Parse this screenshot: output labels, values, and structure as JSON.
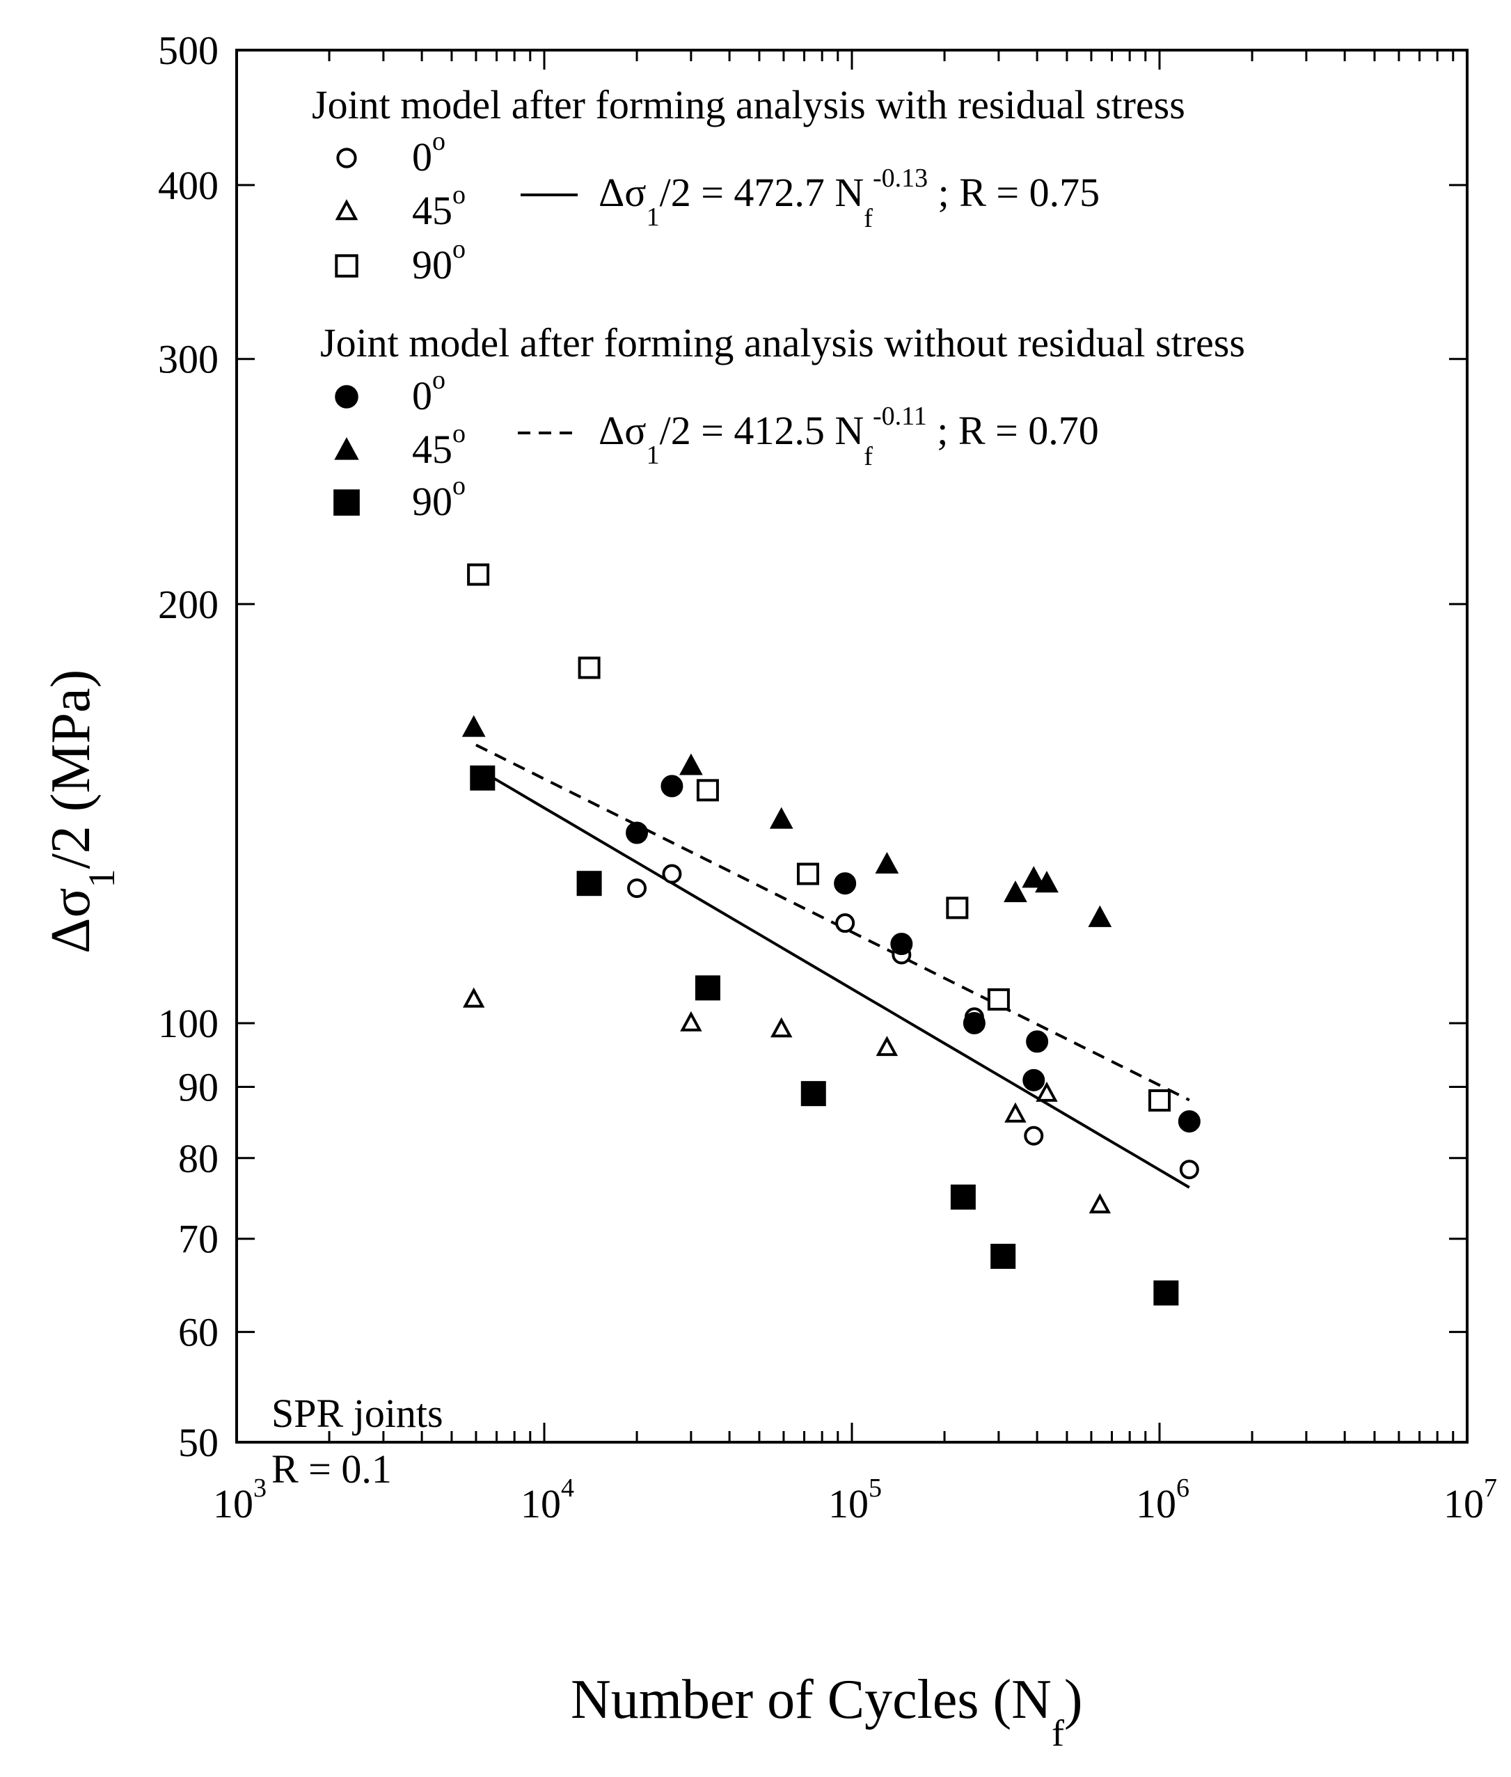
{
  "chart_data": {
    "type": "scatter",
    "xscale": "log",
    "yscale": "log",
    "xlim": [
      1000,
      10000000
    ],
    "ylim": [
      50,
      500
    ],
    "xlabel": "Number of Cycles (N",
    "xlabel_sub": "f",
    "xlabel_close": ")",
    "ylabel_prefix": "Δσ",
    "ylabel_sub": "1",
    "ylabel_suffix": "/2 (MPa)",
    "xticks": [
      {
        "value": 1000,
        "base": "10",
        "exp": "3"
      },
      {
        "value": 10000,
        "base": "10",
        "exp": "4"
      },
      {
        "value": 100000,
        "base": "10",
        "exp": "5"
      },
      {
        "value": 1000000,
        "base": "10",
        "exp": "6"
      },
      {
        "value": 10000000,
        "base": "10",
        "exp": "7"
      }
    ],
    "yticks": [
      {
        "value": 50,
        "label": "50"
      },
      {
        "value": 60,
        "label": "60"
      },
      {
        "value": 70,
        "label": "70"
      },
      {
        "value": 80,
        "label": "80"
      },
      {
        "value": 90,
        "label": "90"
      },
      {
        "value": 100,
        "label": "100"
      },
      {
        "value": 200,
        "label": "200"
      },
      {
        "value": 300,
        "label": "300"
      },
      {
        "value": 400,
        "label": "400"
      },
      {
        "value": 500,
        "label": "500"
      }
    ],
    "groups": [
      {
        "title": "Joint model after forming analysis with residual stress",
        "entries": [
          {
            "marker": "circle-open",
            "label": "0",
            "sup": "o"
          },
          {
            "marker": "triangle-open",
            "label": "45",
            "sup": "o"
          },
          {
            "marker": "square-open",
            "label": "90",
            "sup": "o"
          }
        ],
        "fit": {
          "style": "solid",
          "pre": "Δσ",
          "sub1": "1",
          "mid": "/2 = 472.7 N",
          "sub2": "f",
          "exp": "-0.13",
          "post": " ; R = 0.75"
        }
      },
      {
        "title": "Joint model after forming analysis without residual stress",
        "entries": [
          {
            "marker": "circle-filled",
            "label": "0",
            "sup": "o"
          },
          {
            "marker": "triangle-filled",
            "label": "45",
            "sup": "o"
          },
          {
            "marker": "square-filled",
            "label": "90",
            "sup": "o"
          }
        ],
        "fit": {
          "style": "dashed",
          "pre": "Δσ",
          "sub1": "1",
          "mid": "/2 = 412.5 N",
          "sub2": "f",
          "exp": "-0.11",
          "post": " ; R = 0.70"
        }
      }
    ],
    "series": [
      {
        "name": "with residual stress 0°",
        "marker": "circle-open",
        "points": [
          [
            20000,
            125
          ],
          [
            26000,
            128
          ],
          [
            95000,
            118
          ],
          [
            145000,
            112
          ],
          [
            250000,
            101
          ],
          [
            390000,
            83
          ],
          [
            1250000,
            78.5
          ]
        ]
      },
      {
        "name": "with residual stress 45°",
        "marker": "triangle-open",
        "points": [
          [
            5900,
            104
          ],
          [
            30000,
            100
          ],
          [
            59000,
            99
          ],
          [
            130000,
            96
          ],
          [
            340000,
            86
          ],
          [
            430000,
            89
          ],
          [
            640000,
            74
          ]
        ]
      },
      {
        "name": "with residual stress 90°",
        "marker": "square-open",
        "points": [
          [
            6100,
            210
          ],
          [
            14000,
            180
          ],
          [
            34000,
            147
          ],
          [
            72000,
            128
          ],
          [
            220000,
            121
          ],
          [
            300000,
            104
          ],
          [
            1000000,
            88
          ]
        ]
      },
      {
        "name": "without residual stress 0°",
        "marker": "circle-filled",
        "points": [
          [
            20000,
            137
          ],
          [
            26000,
            148
          ],
          [
            95000,
            126
          ],
          [
            145000,
            114
          ],
          [
            250000,
            100
          ],
          [
            390000,
            91
          ],
          [
            400000,
            97
          ],
          [
            1250000,
            85
          ]
        ]
      },
      {
        "name": "without residual stress 45°",
        "marker": "triangle-filled",
        "points": [
          [
            5900,
            163
          ],
          [
            30000,
            153
          ],
          [
            59000,
            140
          ],
          [
            130000,
            130
          ],
          [
            340000,
            124
          ],
          [
            390000,
            127
          ],
          [
            430000,
            126
          ],
          [
            640000,
            119
          ]
        ]
      },
      {
        "name": "without residual stress 90°",
        "marker": "square-filled",
        "points": [
          [
            6300,
            150
          ],
          [
            14000,
            126
          ],
          [
            34000,
            106
          ],
          [
            75000,
            89
          ],
          [
            230000,
            75
          ],
          [
            310000,
            68
          ],
          [
            1050000,
            64
          ]
        ]
      }
    ],
    "fits": [
      {
        "name": "with residual stress fit",
        "style": "solid",
        "a": 472.7,
        "b": -0.13,
        "xrange": [
          6000,
          1250000
        ]
      },
      {
        "name": "without residual stress fit",
        "style": "dashed",
        "a": 412.5,
        "b": -0.11,
        "xrange": [
          6000,
          1250000
        ]
      }
    ],
    "annotation": [
      "SPR joints",
      "R = 0.1"
    ]
  }
}
